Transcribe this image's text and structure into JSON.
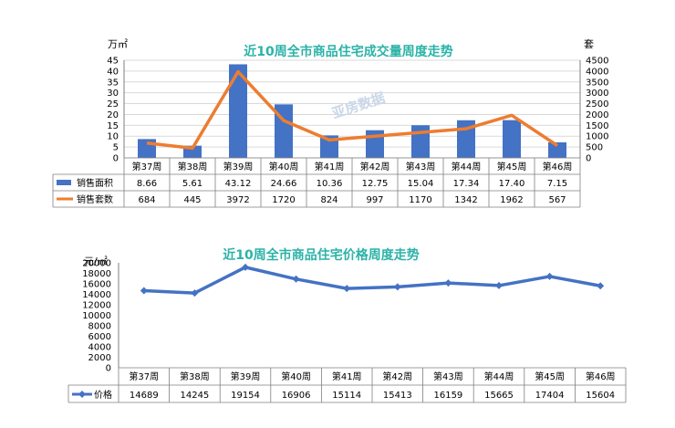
{
  "chart_data": [
    {
      "type": "bar",
      "title": "近10周全市商品住宅成交量周度走势",
      "y1_unit": "万㎡",
      "y2_unit": "套",
      "y1_ticks": [
        "0",
        "5",
        "10",
        "15",
        "20",
        "25",
        "30",
        "35",
        "40",
        "45"
      ],
      "y2_ticks": [
        "0",
        "500",
        "1000",
        "1500",
        "2000",
        "2500",
        "3000",
        "3500",
        "4000",
        "4500"
      ],
      "ylim": [
        0,
        45
      ],
      "y2lim": [
        0,
        4500
      ],
      "categories": [
        "第37周",
        "第38周",
        "第39周",
        "第40周",
        "第41周",
        "第42周",
        "第43周",
        "第44周",
        "第45周",
        "第46周"
      ],
      "series": [
        {
          "name": "销售面积",
          "type": "bar",
          "axis": "left",
          "color": "#4472c4",
          "values": [
            8.66,
            5.61,
            43.12,
            24.66,
            10.36,
            12.75,
            15.04,
            17.34,
            17.4,
            7.15
          ],
          "labels": [
            "8.66",
            "5.61",
            "43.12",
            "24.66",
            "10.36",
            "12.75",
            "15.04",
            "17.34",
            "17.40",
            "7.15"
          ]
        },
        {
          "name": "销售套数",
          "type": "line",
          "axis": "right",
          "color": "#ed7d31",
          "values": [
            684,
            445,
            3972,
            1720,
            824,
            997,
            1170,
            1342,
            1962,
            567
          ],
          "labels": [
            "684",
            "445",
            "3972",
            "1720",
            "824",
            "997",
            "1170",
            "1342",
            "1962",
            "567"
          ]
        }
      ],
      "watermark": "亚房数据"
    },
    {
      "type": "line",
      "title": "近10周全市商品住宅价格周度走势",
      "y_unit": "元/㎡",
      "y_ticks": [
        "0",
        "2000",
        "4000",
        "6000",
        "8000",
        "10000",
        "12000",
        "14000",
        "16000",
        "18000",
        "20000"
      ],
      "ylim": [
        0,
        20000
      ],
      "categories": [
        "第37周",
        "第38周",
        "第39周",
        "第40周",
        "第41周",
        "第42周",
        "第43周",
        "第44周",
        "第45周",
        "第46周"
      ],
      "series": [
        {
          "name": "价格",
          "type": "line",
          "color": "#4472c4",
          "values": [
            14689,
            14245,
            19154,
            16906,
            15114,
            15413,
            16159,
            15665,
            17404,
            15604
          ],
          "labels": [
            "14689",
            "14245",
            "19154",
            "16906",
            "15114",
            "15413",
            "16159",
            "15665",
            "17404",
            "15604"
          ]
        }
      ]
    }
  ]
}
